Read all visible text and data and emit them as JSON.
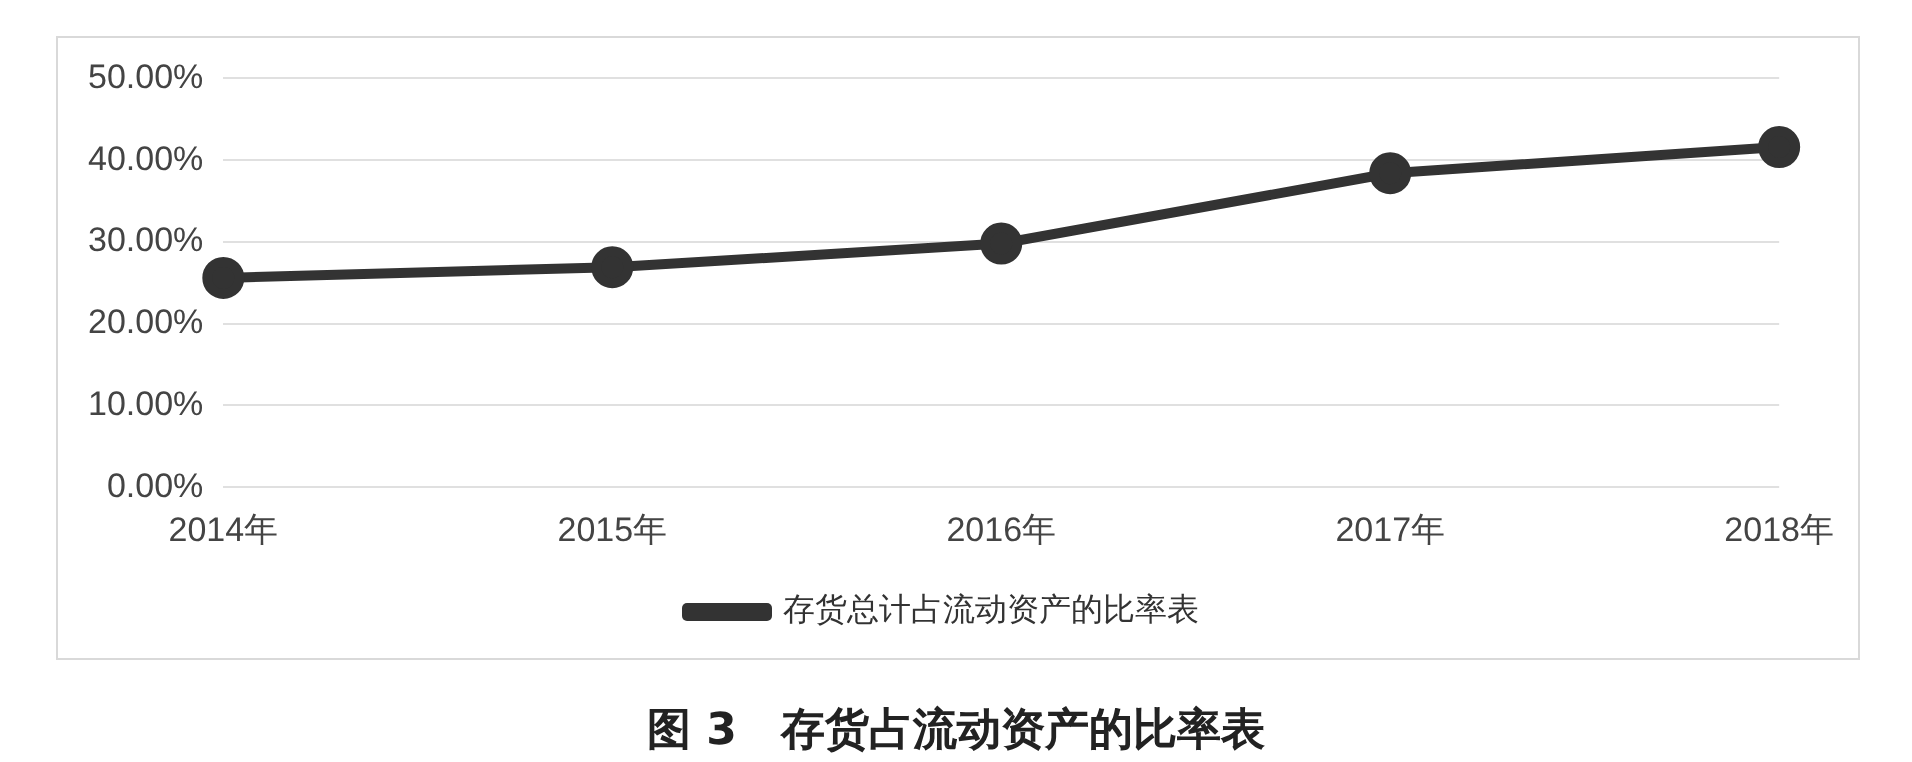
{
  "chart_data": {
    "type": "line",
    "title": "图 3　存货占流动资产的比率表",
    "categories": [
      "2014年",
      "2015年",
      "2016年",
      "2017年",
      "2018年"
    ],
    "series": [
      {
        "name": "存货总计占流动资产的比率表",
        "color": "#333333",
        "values": [
          25.6,
          26.9,
          29.8,
          38.4,
          41.6
        ]
      }
    ],
    "ylim": [
      0,
      50
    ],
    "yticks": [
      {
        "value": 0,
        "label": "0.00%"
      },
      {
        "value": 10,
        "label": "10.00%"
      },
      {
        "value": 20,
        "label": "20.00%"
      },
      {
        "value": 30,
        "label": "30.00%"
      },
      {
        "value": 40,
        "label": "40.00%"
      },
      {
        "value": 50,
        "label": "50.00%"
      }
    ],
    "grid": "y",
    "legend": "bottom",
    "marker": "circle",
    "line_style": "solid"
  }
}
